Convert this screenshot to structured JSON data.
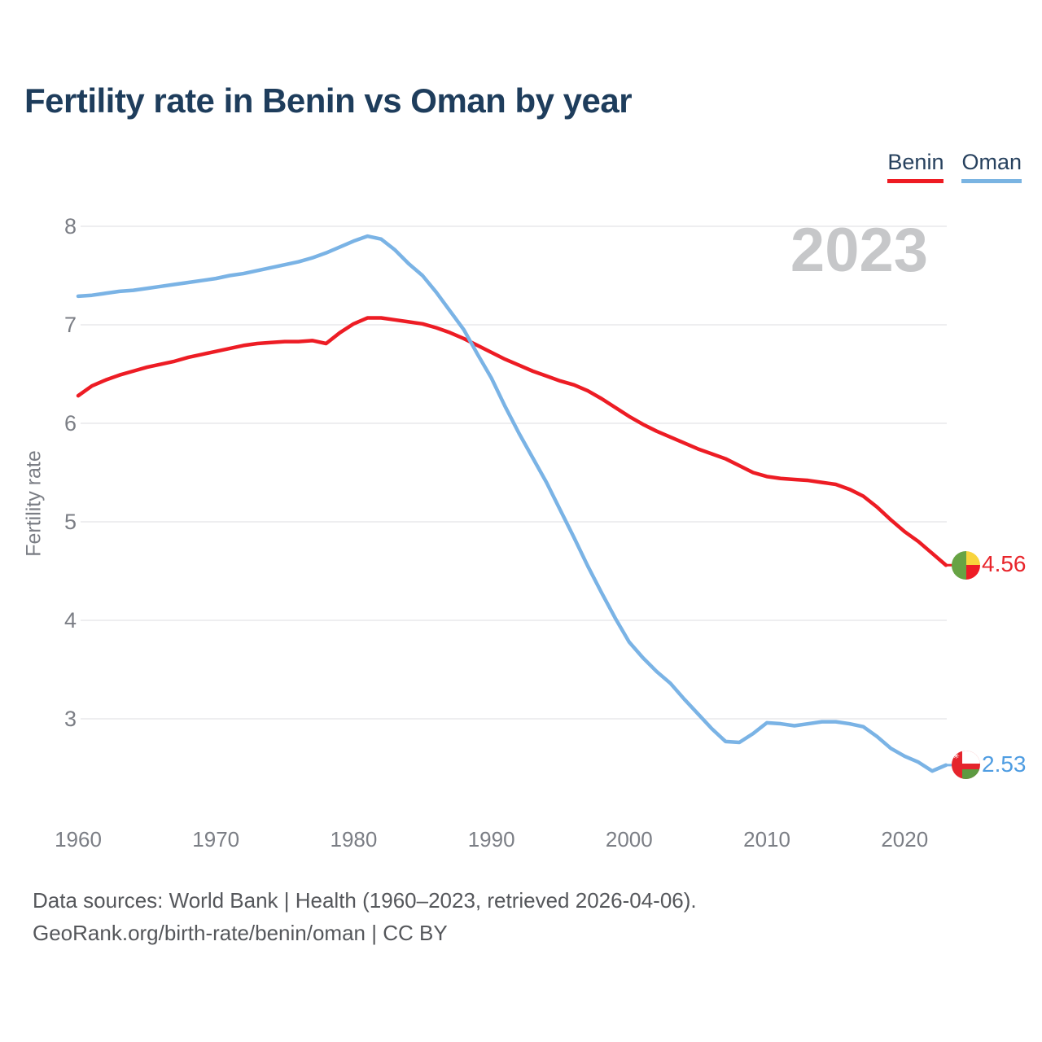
{
  "title": "Fertility rate in Benin vs Oman by year",
  "watermark": "2023",
  "legend": [
    {
      "label": "Benin",
      "color": "#ee1b22"
    },
    {
      "label": "Oman",
      "color": "#7ab4e2"
    }
  ],
  "footer": {
    "line1": "Data sources: World Bank | Health (1960–2023, retrieved 2026-04-06).",
    "line2": "GeoRank.org/birth-rate/benin/oman | CC BY"
  },
  "colors": {
    "title": "#1e3d5c",
    "axis_text": "#7b7e85",
    "grid": "#e9e9eb",
    "watermark": "#c6c7c9",
    "footer": "#55575b",
    "benin_label": "#e8252b",
    "oman_label": "#4f9de2"
  },
  "chart_data": {
    "type": "line",
    "title": "Fertility rate in Benin vs Oman by year",
    "xlabel": "",
    "ylabel": "Fertility rate",
    "x_range": [
      1960,
      2023
    ],
    "ylim": [
      2.3,
      8.2
    ],
    "y_ticks": [
      8,
      7,
      6,
      5,
      4,
      3
    ],
    "x_ticks": [
      1960,
      1970,
      1980,
      1990,
      2000,
      2010,
      2020
    ],
    "grid": "horizontal",
    "legend_position": "top-right",
    "highlighted_year": "2023",
    "years": [
      1960,
      1961,
      1962,
      1963,
      1964,
      1965,
      1966,
      1967,
      1968,
      1969,
      1970,
      1971,
      1972,
      1973,
      1974,
      1975,
      1976,
      1977,
      1978,
      1979,
      1980,
      1981,
      1982,
      1983,
      1984,
      1985,
      1986,
      1987,
      1988,
      1989,
      1990,
      1991,
      1992,
      1993,
      1994,
      1995,
      1996,
      1997,
      1998,
      1999,
      2000,
      2001,
      2002,
      2003,
      2004,
      2005,
      2006,
      2007,
      2008,
      2009,
      2010,
      2011,
      2012,
      2013,
      2014,
      2015,
      2016,
      2017,
      2018,
      2019,
      2020,
      2021,
      2022,
      2023
    ],
    "series": [
      {
        "name": "Benin",
        "color": "#ed1c24",
        "end_label": "4.56",
        "values": [
          6.28,
          6.38,
          6.44,
          6.49,
          6.53,
          6.57,
          6.6,
          6.63,
          6.67,
          6.7,
          6.73,
          6.76,
          6.79,
          6.81,
          6.82,
          6.83,
          6.83,
          6.84,
          6.81,
          6.92,
          7.01,
          7.07,
          7.07,
          7.05,
          7.03,
          7.01,
          6.97,
          6.92,
          6.86,
          6.79,
          6.72,
          6.65,
          6.59,
          6.53,
          6.48,
          6.43,
          6.39,
          6.33,
          6.25,
          6.16,
          6.07,
          5.99,
          5.92,
          5.86,
          5.8,
          5.74,
          5.69,
          5.64,
          5.57,
          5.5,
          5.46,
          5.44,
          5.43,
          5.42,
          5.4,
          5.38,
          5.33,
          5.26,
          5.15,
          5.02,
          4.9,
          4.8,
          4.68,
          4.56
        ]
      },
      {
        "name": "Oman",
        "color": "#7ab3e5",
        "end_label": "2.53",
        "values": [
          7.29,
          7.3,
          7.32,
          7.34,
          7.35,
          7.37,
          7.39,
          7.41,
          7.43,
          7.45,
          7.47,
          7.5,
          7.52,
          7.55,
          7.58,
          7.61,
          7.64,
          7.68,
          7.73,
          7.79,
          7.85,
          7.9,
          7.87,
          7.76,
          7.62,
          7.5,
          7.33,
          7.14,
          6.95,
          6.7,
          6.46,
          6.17,
          5.9,
          5.65,
          5.4,
          5.12,
          4.84,
          4.55,
          4.28,
          4.02,
          3.78,
          3.62,
          3.48,
          3.36,
          3.2,
          3.05,
          2.9,
          2.77,
          2.76,
          2.85,
          2.96,
          2.95,
          2.93,
          2.95,
          2.97,
          2.97,
          2.95,
          2.92,
          2.82,
          2.7,
          2.62,
          2.56,
          2.47,
          2.53
        ]
      }
    ]
  }
}
